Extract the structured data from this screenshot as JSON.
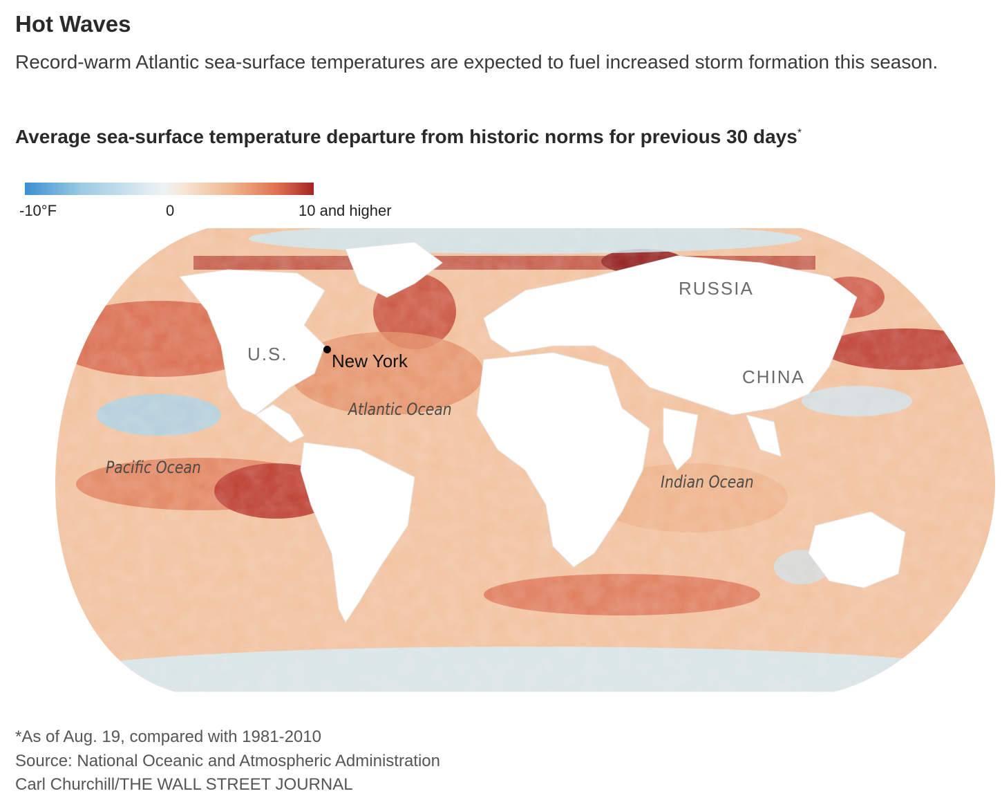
{
  "header": {
    "title": "Hot Waves",
    "subtitle": "Record-warm Atlantic sea-surface temperatures are expected to fuel increased storm formation this season.",
    "chart_heading": "Average sea-surface temperature departure from historic norms for previous 30 days",
    "chart_heading_mark": "*"
  },
  "legend": {
    "min_label": "-10°F",
    "mid_label": "0",
    "max_label": "10 and higher",
    "colors": {
      "cold": "#3b8fd1",
      "neutral": "#eef3f4",
      "warm": "#efb489",
      "hot": "#a32423"
    }
  },
  "map": {
    "country_labels": [
      "RUSSIA",
      "U.S.",
      "CHINA"
    ],
    "ocean_labels": [
      "Atlantic Ocean",
      "Pacific Ocean",
      "Indian Ocean"
    ],
    "city": {
      "name": "New York"
    },
    "land_color": "#ffffff"
  },
  "footer": {
    "note": "*As of Aug. 19, compared with 1981-2010",
    "source": "Source: National Oceanic and Atmospheric Administration",
    "credit": "Carl Churchill/THE WALL STREET JOURNAL"
  }
}
